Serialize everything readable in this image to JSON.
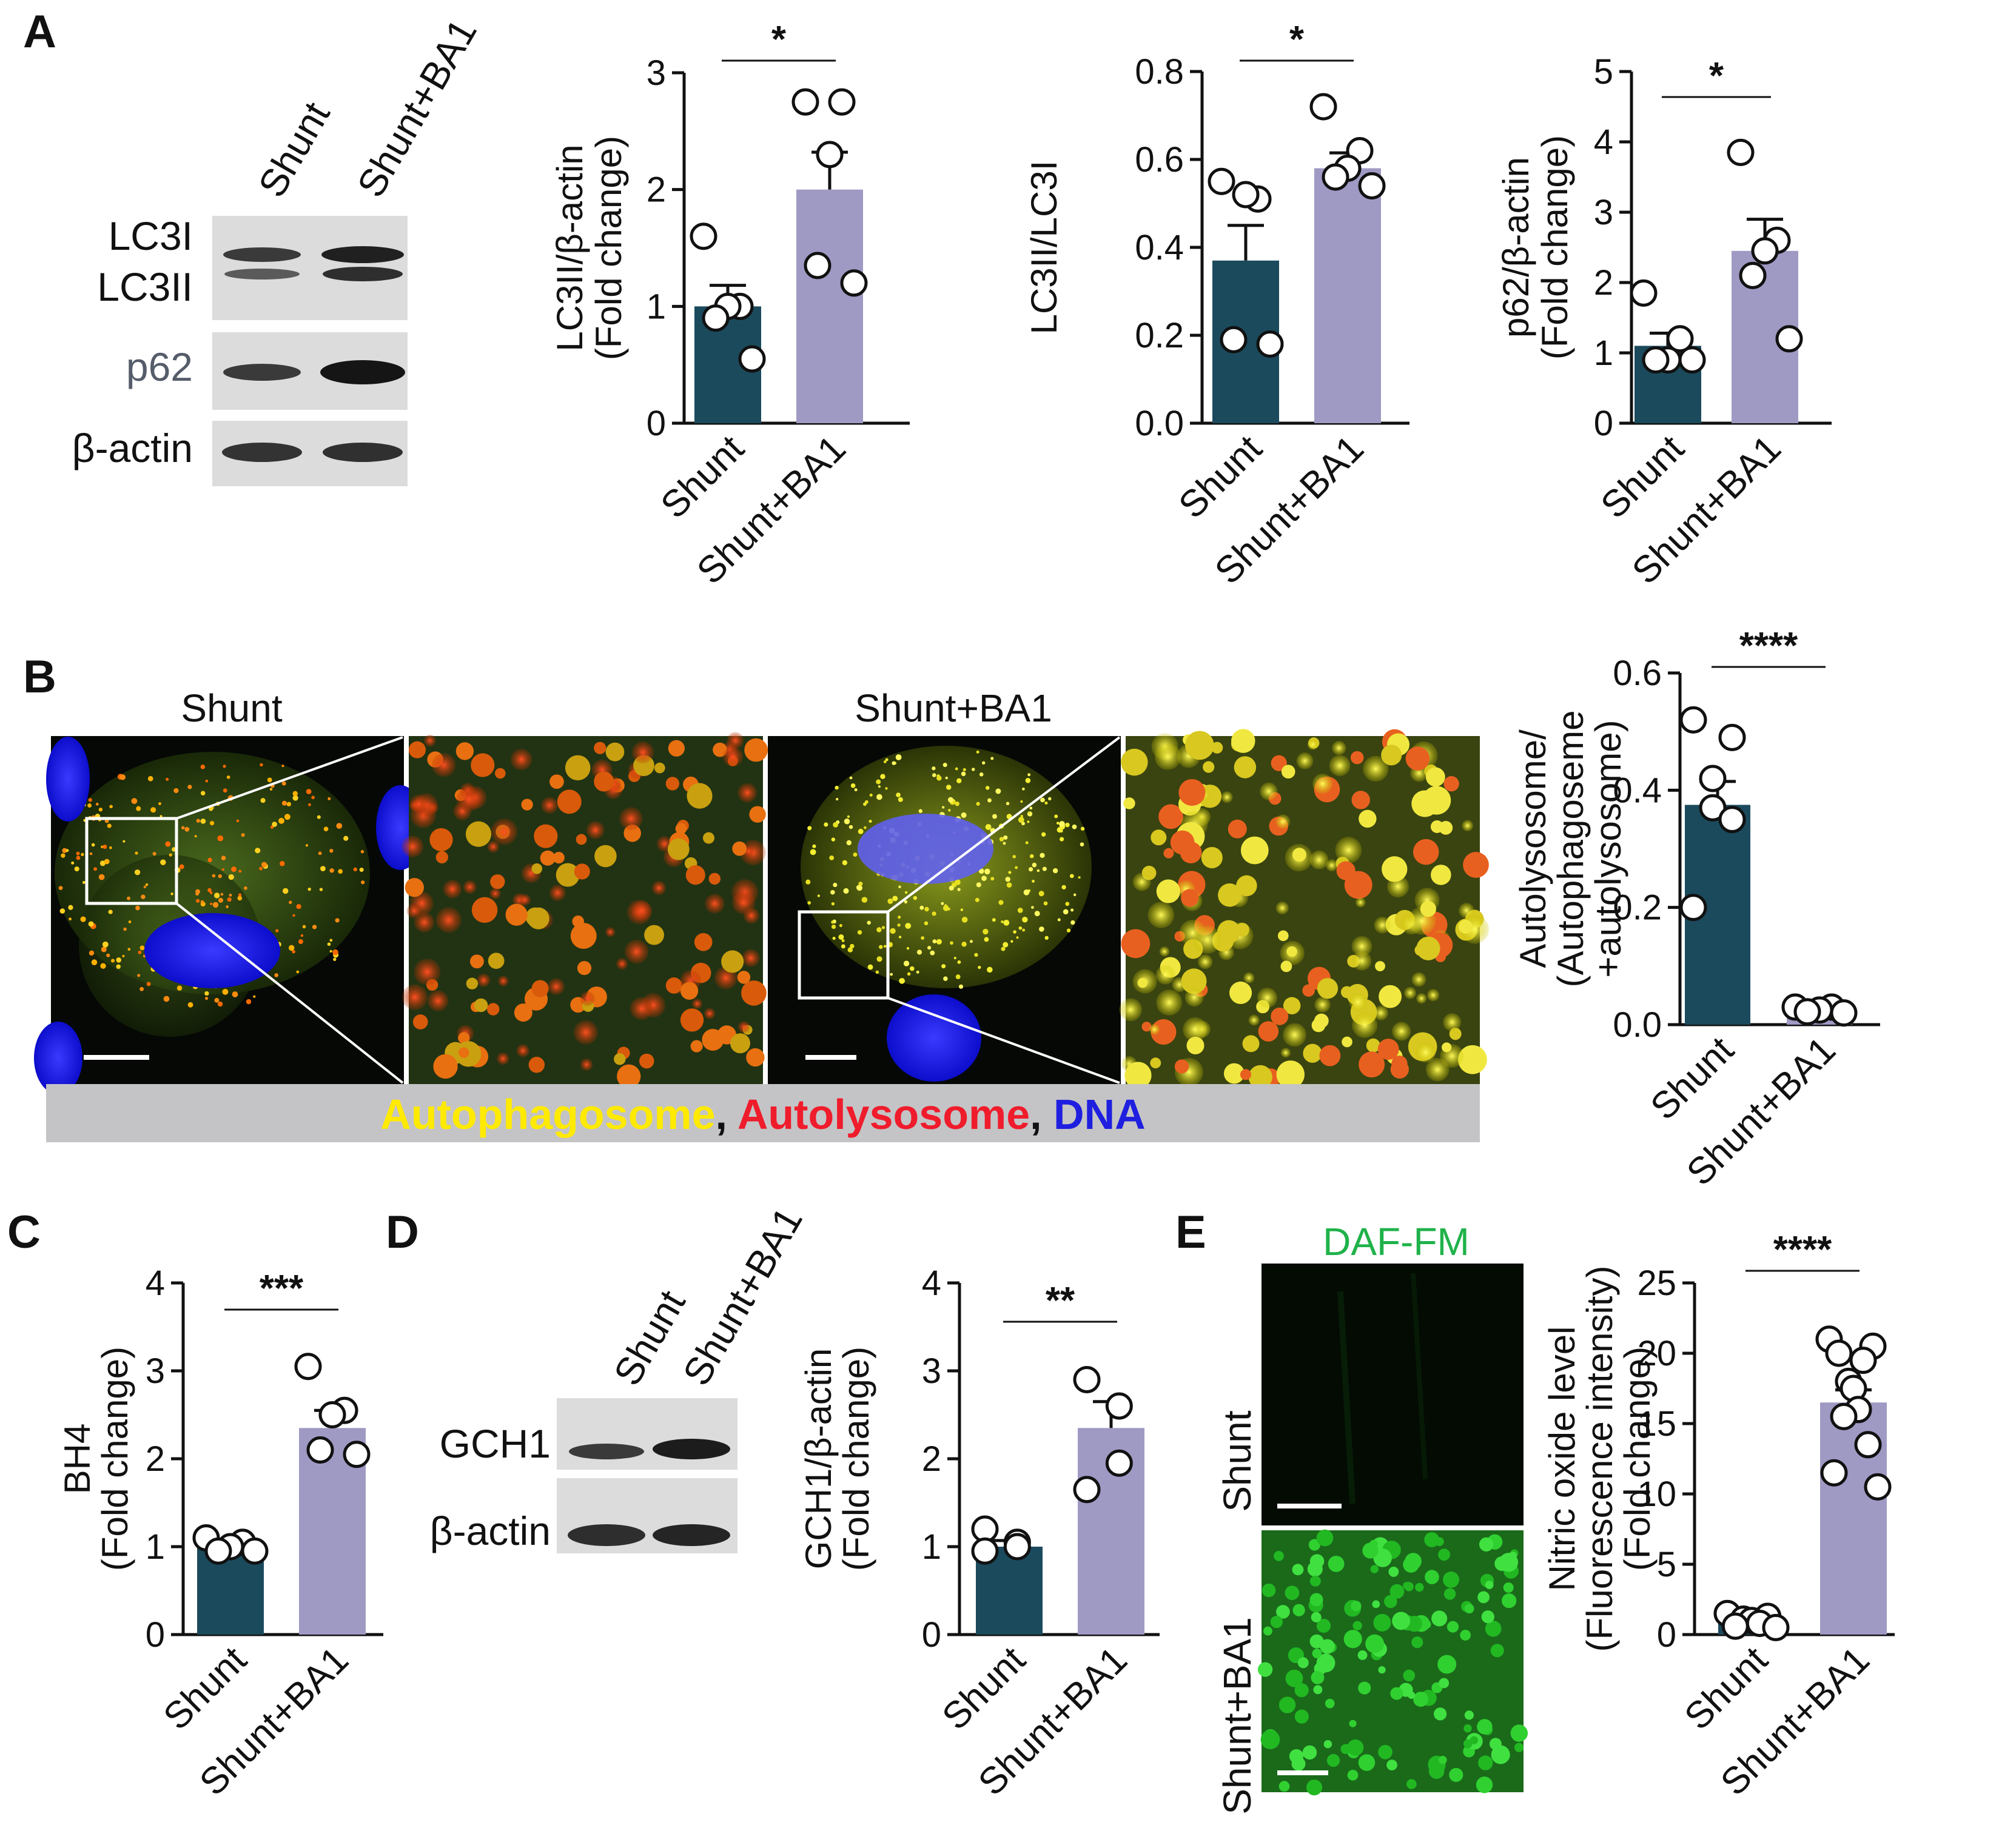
{
  "colors": {
    "shunt": "#1b4a5c",
    "shunt_ba1": "#9f9ac4",
    "yellow": "#ffea00",
    "red": "#ef1c2c",
    "blue": "#1f1fe0",
    "green_text": "#1fb24a"
  },
  "panel_letters": [
    "A",
    "B",
    "C",
    "D",
    "E"
  ],
  "panelA": {
    "blot": {
      "lanes": [
        "Shunt",
        "Shunt+BA1"
      ],
      "bands": [
        "LC3I",
        "LC3II",
        "p62",
        "β-actin"
      ]
    }
  },
  "panelB": {
    "image_titles": [
      "Shunt",
      "Shunt+BA1"
    ],
    "legend": {
      "autophagosome": "Autophagosome",
      "sep1": ",",
      "autolysosome": "Autolysosome",
      "sep2": ",",
      "dna": "DNA"
    }
  },
  "panelD": {
    "blot": {
      "lanes": [
        "Shunt",
        "Shunt+BA1"
      ],
      "bands": [
        "GCH1",
        "β-actin"
      ]
    }
  },
  "panelE": {
    "image_title": "DAF-FM",
    "row_labels": [
      "Shunt",
      "Shunt+BA1"
    ]
  },
  "chart_data": [
    {
      "id": "A1",
      "type": "bar",
      "panel": "A",
      "categories": [
        "Shunt",
        "Shunt+BA1"
      ],
      "ylabel_lines": [
        "LC3II/β-actin",
        "(Fold change)"
      ],
      "ylim": [
        0,
        3
      ],
      "yticks": [
        "0",
        "1",
        "2",
        "3"
      ],
      "means": [
        1.0,
        2.0
      ],
      "sem": [
        0.18,
        0.32
      ],
      "points": [
        [
          1.6,
          1.0,
          1.0,
          0.9,
          0.55
        ],
        [
          2.75,
          2.75,
          2.3,
          1.35,
          1.2
        ]
      ],
      "significance": "*"
    },
    {
      "id": "A2",
      "type": "bar",
      "panel": "A",
      "categories": [
        "Shunt",
        "Shunt+BA1"
      ],
      "ylabel_lines": [
        "LC3II/LC3I"
      ],
      "ylim": [
        0,
        0.8
      ],
      "yticks": [
        "0.0",
        "0.2",
        "0.4",
        "0.6",
        "0.8"
      ],
      "means": [
        0.37,
        0.58
      ],
      "sem": [
        0.08,
        0.035
      ],
      "points": [
        [
          0.55,
          0.51,
          0.52,
          0.19,
          0.18
        ],
        [
          0.72,
          0.62,
          0.58,
          0.56,
          0.54
        ]
      ],
      "significance": "*"
    },
    {
      "id": "A3",
      "type": "bar",
      "panel": "A",
      "categories": [
        "Shunt",
        "Shunt+BA1"
      ],
      "ylabel_lines": [
        "p62/β-actin",
        "(Fold change)"
      ],
      "ylim": [
        0,
        5
      ],
      "yticks": [
        "0",
        "1",
        "2",
        "3",
        "4",
        "5"
      ],
      "means": [
        1.1,
        2.45
      ],
      "sem": [
        0.18,
        0.45
      ],
      "points": [
        [
          1.85,
          1.2,
          0.9,
          0.9,
          0.9
        ],
        [
          3.85,
          2.6,
          2.45,
          2.1,
          1.2
        ]
      ],
      "significance": "*"
    },
    {
      "id": "B1",
      "type": "bar",
      "panel": "B",
      "categories": [
        "Shunt",
        "Shunt+BA1"
      ],
      "ylabel_lines": [
        "Autolysosome/",
        "(Autophagoseme",
        "+autolysosome)"
      ],
      "ylim": [
        0,
        0.6
      ],
      "yticks": [
        "0.0",
        "0.2",
        "0.4",
        "0.6"
      ],
      "means": [
        0.375,
        0.025
      ],
      "sem": [
        0.04,
        0.003
      ],
      "points": [
        [
          0.52,
          0.49,
          0.42,
          0.37,
          0.35,
          0.2
        ],
        [
          0.03,
          0.03,
          0.025,
          0.022,
          0.02
        ]
      ],
      "significance": "****"
    },
    {
      "id": "C1",
      "type": "bar",
      "panel": "C",
      "categories": [
        "Shunt",
        "Shunt+BA1"
      ],
      "ylabel_lines": [
        "BH4",
        "(Fold change)"
      ],
      "ylim": [
        0,
        4
      ],
      "yticks": [
        "0",
        "1",
        "2",
        "3",
        "4"
      ],
      "means": [
        1.0,
        2.35
      ],
      "sem": [
        0.05,
        0.2
      ],
      "points": [
        [
          1.1,
          1.05,
          1.0,
          0.95,
          0.95
        ],
        [
          3.05,
          2.55,
          2.5,
          2.1,
          2.05
        ]
      ],
      "significance": "***"
    },
    {
      "id": "D1",
      "type": "bar",
      "panel": "D",
      "categories": [
        "Shunt",
        "Shunt+BA1"
      ],
      "ylabel_lines": [
        "GCH1/β-actin",
        "(Fold change)"
      ],
      "ylim": [
        0,
        4
      ],
      "yticks": [
        "0",
        "1",
        "2",
        "3",
        "4"
      ],
      "means": [
        1.0,
        2.35
      ],
      "sem": [
        0.07,
        0.3
      ],
      "points": [
        [
          1.2,
          1.05,
          1.0,
          0.95
        ],
        [
          2.9,
          2.6,
          1.95,
          1.65
        ]
      ],
      "significance": "**"
    },
    {
      "id": "E1",
      "type": "bar",
      "panel": "E",
      "categories": [
        "Shunt",
        "Shunt+BA1"
      ],
      "ylabel_lines": [
        "Nitric oxide level",
        "(Fluorescence intensity)",
        "(Fold change)"
      ],
      "ylim": [
        0,
        25
      ],
      "yticks": [
        "0",
        "5",
        "10",
        "15",
        "20",
        "25"
      ],
      "means": [
        1.0,
        16.5
      ],
      "sem": [
        0.15,
        0.9
      ],
      "points": [
        [
          1.5,
          1.3,
          1.1,
          1.0,
          0.8,
          0.6,
          0.5
        ],
        [
          21.0,
          20.5,
          20.0,
          19.5,
          18.0,
          17.5,
          16.0,
          15.5,
          13.5,
          11.5,
          10.5
        ]
      ],
      "significance": "****"
    }
  ]
}
